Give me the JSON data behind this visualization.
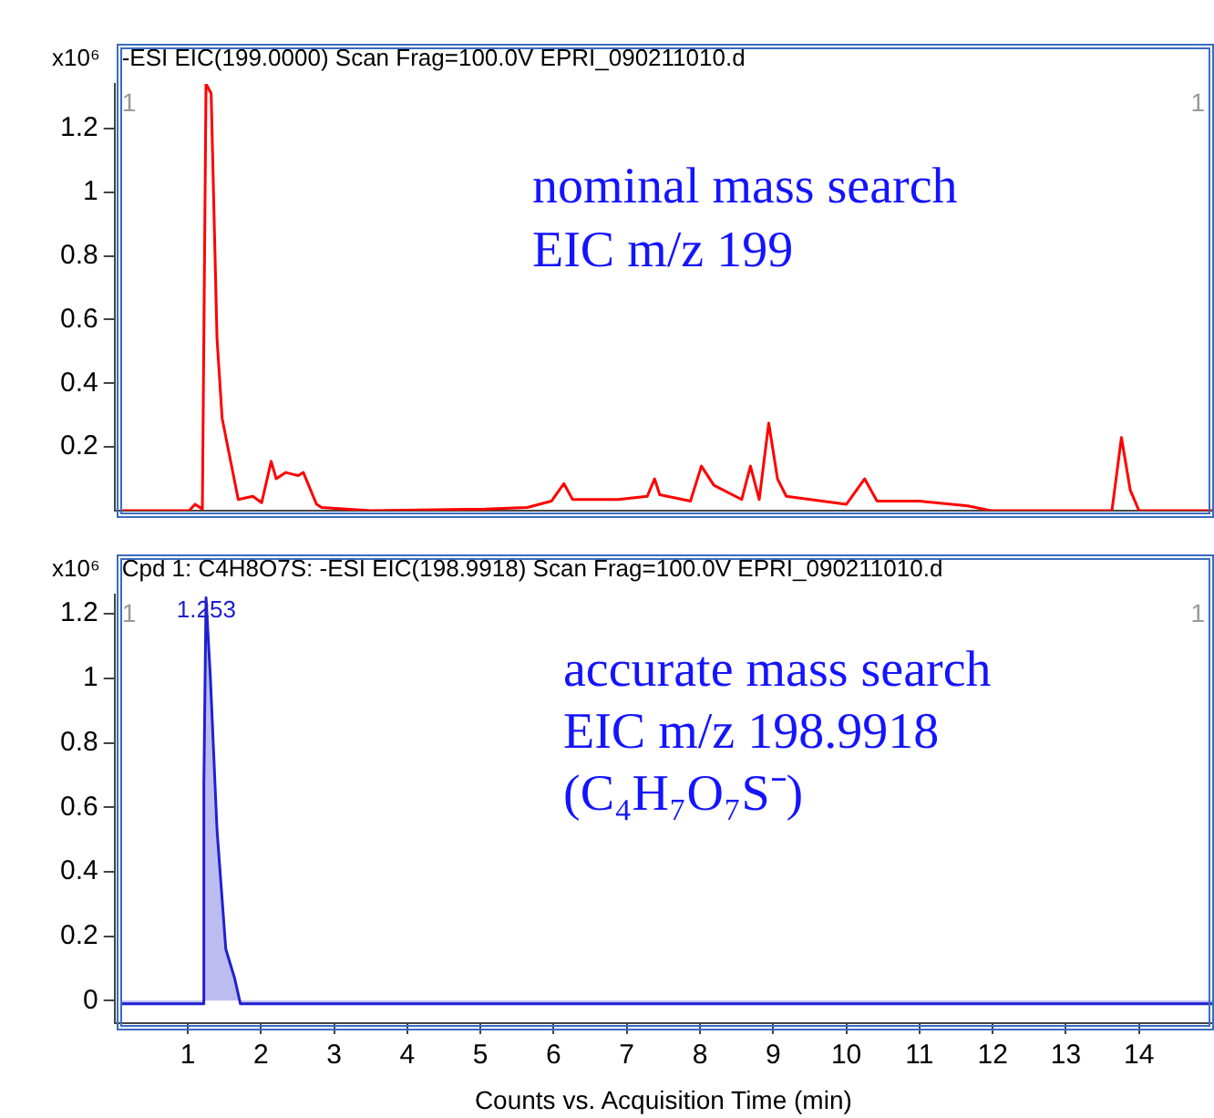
{
  "chart_data": [
    {
      "type": "line",
      "title": "-ESI EIC(199.0000) Scan Frag=100.0V EPRI_090211010.d",
      "ylabel": "x10⁶",
      "xlim": [
        0,
        15
      ],
      "ylim": [
        0,
        1.34
      ],
      "yticks": [
        0.2,
        0.4,
        0.6,
        0.8,
        1,
        1.2
      ],
      "tick_labels": "y",
      "grid": false,
      "legend": false,
      "marker": "none",
      "line_style": "solid",
      "x": [
        0.09,
        1.02,
        1.1,
        1.2,
        1.25,
        1.32,
        1.4,
        1.47,
        1.69,
        1.89,
        2.01,
        2.14,
        2.21,
        2.34,
        2.51,
        2.58,
        2.76,
        2.83,
        3.5,
        5.06,
        5.64,
        5.97,
        6.14,
        6.26,
        6.71,
        6.88,
        7.28,
        7.38,
        7.45,
        7.87,
        8.02,
        8.19,
        8.57,
        8.69,
        8.81,
        8.94,
        9.06,
        9.18,
        10.0,
        10.25,
        10.42,
        11.0,
        11.66,
        11.98,
        13.63,
        13.76,
        13.88,
        14.0,
        15.0
      ],
      "series": [
        {
          "color": "#ff0000",
          "values": [
            0,
            0,
            0.02,
            0.005,
            1.34,
            1.31,
            0.54,
            0.29,
            0.035,
            0.045,
            0.025,
            0.155,
            0.1,
            0.12,
            0.11,
            0.12,
            0.02,
            0.01,
            0,
            0.005,
            0.01,
            0.03,
            0.085,
            0.035,
            0.035,
            0.035,
            0.045,
            0.1,
            0.05,
            0.03,
            0.14,
            0.08,
            0.035,
            0.14,
            0.035,
            0.275,
            0.1,
            0.045,
            0.02,
            0.1,
            0.03,
            0.03,
            0.015,
            0,
            0,
            0.23,
            0.065,
            0,
            0
          ]
        }
      ],
      "annotations": [
        "1",
        "1",
        "nominal mass search",
        "EIC m/z 199"
      ]
    },
    {
      "type": "area",
      "title": "Cpd 1: C4H8O7S: -ESI EIC(198.9918) Scan Frag=100.0V EPRI_090211010.d",
      "ylabel": "x10⁶",
      "xlabel": "Counts vs. Acquisition Time (min)",
      "xlim": [
        0,
        15
      ],
      "xticks": [
        1,
        2,
        3,
        4,
        5,
        6,
        7,
        8,
        9,
        10,
        11,
        12,
        13,
        14
      ],
      "ylim": [
        -0.07,
        1.26
      ],
      "yticks": [
        0,
        0.2,
        0.4,
        0.6,
        0.8,
        1,
        1.2
      ],
      "grid": false,
      "legend": false,
      "marker": "none",
      "line_style": "solid",
      "x": [
        0.09,
        1.2,
        1.22,
        1.25,
        1.31,
        1.4,
        1.52,
        1.64,
        1.72,
        15.0
      ],
      "series": [
        {
          "color": "#2020d0",
          "values": [
            -0.01,
            -0.01,
            0.67,
            1.25,
            1.0,
            0.53,
            0.16,
            0.07,
            -0.01,
            -0.01
          ]
        }
      ],
      "annotations": [
        "1",
        "1",
        {
          "text": "1.253",
          "x": 1.253,
          "y": 1.25
        },
        "accurate mass search",
        "EIC m/z 198.9918",
        "(C₄H₇O₇S⁻)"
      ]
    }
  ]
}
